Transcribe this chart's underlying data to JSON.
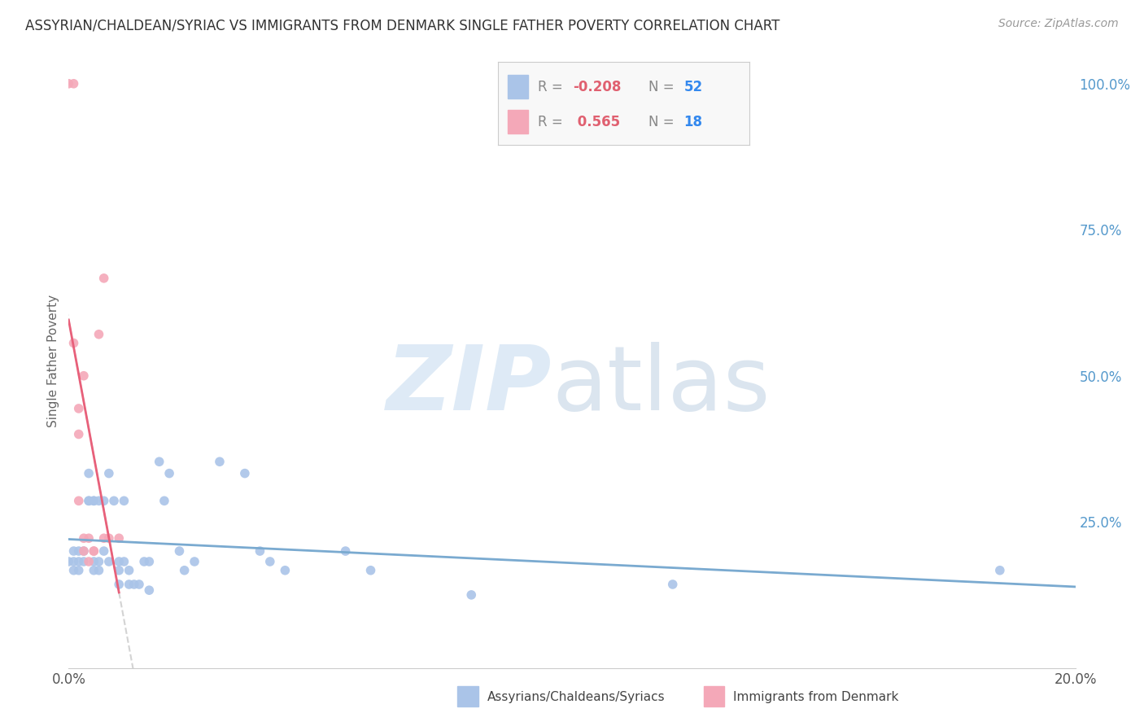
{
  "title": "ASSYRIAN/CHALDEAN/SYRIAC VS IMMIGRANTS FROM DENMARK SINGLE FATHER POVERTY CORRELATION CHART",
  "source": "Source: ZipAtlas.com",
  "ylabel": "Single Father Poverty",
  "right_yticks": [
    "100.0%",
    "75.0%",
    "50.0%",
    "25.0%"
  ],
  "right_ytick_vals": [
    1.0,
    0.75,
    0.5,
    0.25
  ],
  "legend_blue_r": "-0.208",
  "legend_blue_n": "52",
  "legend_pink_r": " 0.565",
  "legend_pink_n": "18",
  "color_blue": "#aac4e8",
  "color_pink": "#f4a8b8",
  "color_trendline_blue": "#7aaad0",
  "color_trendline_pink": "#e8607a",
  "color_trendline_gray": "#c8c8c8",
  "blue_points": [
    [
      0.0,
      0.182
    ],
    [
      0.001,
      0.2
    ],
    [
      0.001,
      0.167
    ],
    [
      0.001,
      0.182
    ],
    [
      0.002,
      0.2
    ],
    [
      0.002,
      0.182
    ],
    [
      0.002,
      0.167
    ],
    [
      0.003,
      0.182
    ],
    [
      0.003,
      0.2
    ],
    [
      0.004,
      0.333
    ],
    [
      0.004,
      0.286
    ],
    [
      0.004,
      0.286
    ],
    [
      0.005,
      0.286
    ],
    [
      0.005,
      0.182
    ],
    [
      0.005,
      0.167
    ],
    [
      0.005,
      0.286
    ],
    [
      0.006,
      0.286
    ],
    [
      0.006,
      0.182
    ],
    [
      0.006,
      0.167
    ],
    [
      0.007,
      0.286
    ],
    [
      0.007,
      0.2
    ],
    [
      0.008,
      0.182
    ],
    [
      0.008,
      0.333
    ],
    [
      0.009,
      0.286
    ],
    [
      0.01,
      0.182
    ],
    [
      0.01,
      0.167
    ],
    [
      0.01,
      0.143
    ],
    [
      0.011,
      0.286
    ],
    [
      0.011,
      0.182
    ],
    [
      0.012,
      0.167
    ],
    [
      0.012,
      0.143
    ],
    [
      0.013,
      0.143
    ],
    [
      0.014,
      0.143
    ],
    [
      0.015,
      0.182
    ],
    [
      0.016,
      0.133
    ],
    [
      0.016,
      0.182
    ],
    [
      0.018,
      0.353
    ],
    [
      0.019,
      0.286
    ],
    [
      0.02,
      0.333
    ],
    [
      0.022,
      0.2
    ],
    [
      0.023,
      0.167
    ],
    [
      0.025,
      0.182
    ],
    [
      0.03,
      0.353
    ],
    [
      0.035,
      0.333
    ],
    [
      0.038,
      0.2
    ],
    [
      0.04,
      0.182
    ],
    [
      0.043,
      0.167
    ],
    [
      0.055,
      0.2
    ],
    [
      0.06,
      0.167
    ],
    [
      0.08,
      0.125
    ],
    [
      0.12,
      0.143
    ],
    [
      0.185,
      0.167
    ]
  ],
  "pink_points": [
    [
      0.0,
      1.0
    ],
    [
      0.001,
      1.0
    ],
    [
      0.001,
      0.556
    ],
    [
      0.002,
      0.444
    ],
    [
      0.002,
      0.4
    ],
    [
      0.002,
      0.286
    ],
    [
      0.003,
      0.222
    ],
    [
      0.003,
      0.5
    ],
    [
      0.003,
      0.2
    ],
    [
      0.004,
      0.222
    ],
    [
      0.004,
      0.182
    ],
    [
      0.005,
      0.2
    ],
    [
      0.005,
      0.2
    ],
    [
      0.006,
      0.571
    ],
    [
      0.007,
      0.667
    ],
    [
      0.007,
      0.222
    ],
    [
      0.008,
      0.222
    ],
    [
      0.01,
      0.222
    ]
  ],
  "xlim": [
    0,
    0.2
  ],
  "ylim": [
    0,
    1.05
  ],
  "background_color": "#ffffff",
  "grid_color": "#e8e8e8",
  "legend_facecolor": "#f8f8f8",
  "legend_edgecolor": "#cccccc"
}
